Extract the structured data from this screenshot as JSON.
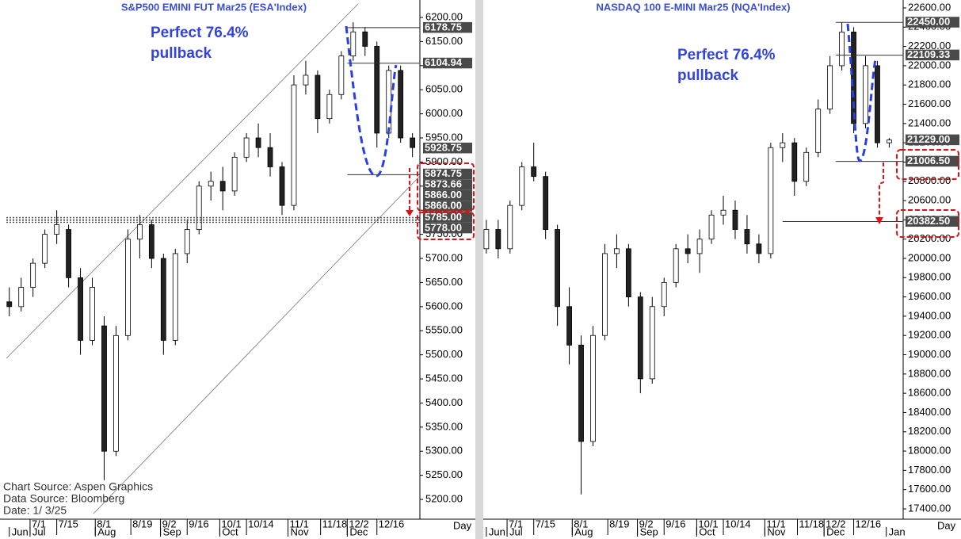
{
  "chart_data": [
    {
      "type": "candlestick",
      "title": "S&P500  EMINI FUT    Mar25  (ESA'Index)",
      "annotations": [
        "Perfect 76.4%",
        "pullback"
      ],
      "notes": [
        "Chart Source:  Aspen Graphics",
        "Data  Source:  Bloomberg",
        "Date:    1/  3/25"
      ],
      "xlabel": "Day",
      "xlim": [
        -8,
        131.5
      ],
      "ylim": [
        5159,
        6223
      ],
      "yticks": [
        {
          "value": 5200,
          "label": "5200.00"
        },
        {
          "value": 5250,
          "label": "5250.00"
        },
        {
          "value": 5300,
          "label": "5300.00"
        },
        {
          "value": 5350,
          "label": "5350.00"
        },
        {
          "value": 5400,
          "label": "5400.00"
        },
        {
          "value": 5450,
          "label": "5450.00"
        },
        {
          "value": 5500,
          "label": "5500.00"
        },
        {
          "value": 5550,
          "label": "5550.00"
        },
        {
          "value": 5600,
          "label": "5600.00"
        },
        {
          "value": 5650,
          "label": "5650.00"
        },
        {
          "value": 5700,
          "label": "5700.00"
        },
        {
          "value": 5750,
          "label": "5750.00"
        },
        {
          "value": 5800,
          "label": "5800.00"
        },
        {
          "value": 5850,
          "label": "5850.00"
        },
        {
          "value": 5900,
          "label": "5900.00"
        },
        {
          "value": 5950,
          "label": "5950.00"
        },
        {
          "value": 6000,
          "label": "6000.00"
        },
        {
          "value": 6050,
          "label": "6050.00"
        },
        {
          "value": 6100,
          "label": "6100.00"
        },
        {
          "value": 6150,
          "label": "6150.00"
        },
        {
          "value": 6200,
          "label": "6200.00"
        }
      ],
      "xticks": [
        {
          "value": 0,
          "label": "7/1"
        },
        {
          "value": 9,
          "label": "7/15"
        },
        {
          "value": 22,
          "label": "8/1"
        },
        {
          "value": 34,
          "label": "8/19"
        },
        {
          "value": 44,
          "label": "9/2"
        },
        {
          "value": 53,
          "label": "9/16"
        },
        {
          "value": 64,
          "label": "10/1"
        },
        {
          "value": 73,
          "label": "10/14"
        },
        {
          "value": 87,
          "label": "11/1"
        },
        {
          "value": 98,
          "label": "11/18"
        },
        {
          "value": 107,
          "label": "12/2"
        },
        {
          "value": 117,
          "label": "12/16"
        }
      ],
      "month_ticks": [
        {
          "value": -7,
          "label": "Jun"
        },
        {
          "value": 0,
          "label": "Jul"
        },
        {
          "value": 22,
          "label": "Aug"
        },
        {
          "value": 44,
          "label": "Sep"
        },
        {
          "value": 64,
          "label": "Oct"
        },
        {
          "value": 87,
          "label": "Nov"
        },
        {
          "value": 107,
          "label": "Dec"
        }
      ],
      "x": [
        -7,
        -3,
        1,
        5,
        9,
        13,
        17,
        21,
        25,
        29,
        33,
        37,
        41,
        45,
        49,
        53,
        57,
        61,
        65,
        69,
        73,
        77,
        81,
        85,
        89,
        93,
        97,
        101,
        105,
        109,
        113,
        117,
        121,
        125,
        129
      ],
      "open": [
        5610,
        5600,
        5640,
        5690,
        5750,
        5760,
        5660,
        5530,
        5560,
        5300,
        5540,
        5740,
        5770,
        5700,
        5530,
        5710,
        5760,
        5850,
        5860,
        5840,
        5910,
        5950,
        5930,
        5890,
        5810,
        6060,
        6080,
        5990,
        6040,
        6120,
        6170,
        6140,
        5960,
        6090,
        5950
      ],
      "high": [
        5640,
        5660,
        5700,
        5760,
        5800,
        5770,
        5680,
        5660,
        5580,
        5560,
        5760,
        5790,
        5780,
        5710,
        5720,
        5780,
        5860,
        5880,
        5890,
        5920,
        5960,
        5980,
        5960,
        5900,
        6080,
        6110,
        6090,
        6050,
        6130,
        6190,
        6180,
        6150,
        6100,
        6100,
        5960
      ],
      "low": [
        5580,
        5590,
        5620,
        5680,
        5730,
        5640,
        5500,
        5520,
        5240,
        5290,
        5530,
        5700,
        5680,
        5500,
        5520,
        5690,
        5750,
        5820,
        5800,
        5830,
        5900,
        5910,
        5870,
        5790,
        5800,
        6040,
        5960,
        5980,
        6030,
        6110,
        6120,
        5930,
        5950,
        5940,
        5910
      ],
      "close": [
        5600,
        5640,
        5690,
        5750,
        5770,
        5660,
        5530,
        5640,
        5300,
        5540,
        5740,
        5770,
        5700,
        5530,
        5710,
        5760,
        5850,
        5860,
        5840,
        5910,
        5950,
        5930,
        5890,
        5810,
        6060,
        6080,
        5990,
        6040,
        6120,
        6170,
        6140,
        5960,
        6090,
        5950,
        5930
      ],
      "levels": [
        {
          "value": 6178.75,
          "x_start": 107
        },
        {
          "value": 6104.94,
          "x_start": 107
        },
        {
          "value": 5928.75
        },
        {
          "value": 5874.75
        },
        {
          "value": 5873.66,
          "x_start": 107
        },
        {
          "value": 5866,
          "label": "5866.00"
        },
        {
          "value": 5866,
          "label": "5866.00"
        },
        {
          "value": 5785,
          "label": "5785.00",
          "x_start": -8,
          "style": "dotted"
        },
        {
          "value": 5778,
          "label": "5778.00",
          "x_start": -8,
          "style": "dotted"
        }
      ]
    },
    {
      "type": "candlestick",
      "title": "NASDAQ  100  E-MINI  Mar25  (NQA'Index)",
      "annotations": [
        "Perfect 76.4%",
        "pullback"
      ],
      "xlabel": "Day",
      "xlim": [
        -7.5,
        133.7
      ],
      "ylim": [
        17293,
        22641
      ],
      "yticks": [
        {
          "value": 17400,
          "label": "17400.00"
        },
        {
          "value": 17600,
          "label": "17600.00"
        },
        {
          "value": 17800,
          "label": "17800.00"
        },
        {
          "value": 18000,
          "label": "18000.00"
        },
        {
          "value": 18200,
          "label": "18200.00"
        },
        {
          "value": 18400,
          "label": "18400.00"
        },
        {
          "value": 18600,
          "label": "18600.00"
        },
        {
          "value": 18800,
          "label": "18800.00"
        },
        {
          "value": 19000,
          "label": "19000.00"
        },
        {
          "value": 19200,
          "label": "19200.00"
        },
        {
          "value": 19400,
          "label": "19400.00"
        },
        {
          "value": 19600,
          "label": "19600.00"
        },
        {
          "value": 19800,
          "label": "19800.00"
        },
        {
          "value": 20000,
          "label": "20000.00"
        },
        {
          "value": 20200,
          "label": "20200.00"
        },
        {
          "value": 20400,
          "label": "20400.00"
        },
        {
          "value": 20600,
          "label": "20600.00"
        },
        {
          "value": 20800,
          "label": "20800.00"
        },
        {
          "value": 21000,
          "label": "21000.00"
        },
        {
          "value": 21200,
          "label": "21200.00"
        },
        {
          "value": 21400,
          "label": "21400.00"
        },
        {
          "value": 21600,
          "label": "21600.00"
        },
        {
          "value": 21800,
          "label": "21800.00"
        },
        {
          "value": 22000,
          "label": "22000.00"
        },
        {
          "value": 22200,
          "label": "22200.00"
        },
        {
          "value": 22400,
          "label": "22400.00"
        },
        {
          "value": 22600,
          "label": "22600.00"
        }
      ],
      "xticks": [
        {
          "value": 0,
          "label": "7/1"
        },
        {
          "value": 9,
          "label": "7/15"
        },
        {
          "value": 22,
          "label": "8/1"
        },
        {
          "value": 34,
          "label": "8/19"
        },
        {
          "value": 44,
          "label": "9/2"
        },
        {
          "value": 53,
          "label": "9/16"
        },
        {
          "value": 64,
          "label": "10/1"
        },
        {
          "value": 73,
          "label": "10/14"
        },
        {
          "value": 87,
          "label": "11/1"
        },
        {
          "value": 98,
          "label": "11/18"
        },
        {
          "value": 107,
          "label": "12/2"
        },
        {
          "value": 117,
          "label": "12/16"
        }
      ],
      "month_ticks": [
        {
          "value": -7,
          "label": "Jun"
        },
        {
          "value": 0,
          "label": "Jul"
        },
        {
          "value": 22,
          "label": "Aug"
        },
        {
          "value": 44,
          "label": "Sep"
        },
        {
          "value": 64,
          "label": "Oct"
        },
        {
          "value": 87,
          "label": "Nov"
        },
        {
          "value": 107,
          "label": "Dec"
        },
        {
          "value": 128,
          "label": "Jan"
        }
      ],
      "x": [
        -7,
        -3,
        1,
        5,
        9,
        13,
        17,
        21,
        25,
        29,
        33,
        37,
        41,
        45,
        49,
        53,
        57,
        61,
        65,
        69,
        73,
        77,
        81,
        85,
        89,
        93,
        97,
        101,
        105,
        109,
        113,
        117,
        121,
        125,
        129
      ],
      "open": [
        20100,
        20300,
        20100,
        20550,
        20950,
        20850,
        20300,
        19500,
        19100,
        18100,
        19200,
        20050,
        20100,
        19600,
        18750,
        19500,
        19750,
        20100,
        20050,
        20200,
        20450,
        20500,
        20300,
        20150,
        20050,
        21150,
        21200,
        20800,
        21100,
        21550,
        22000,
        22350,
        21400,
        22000,
        21200
      ],
      "high": [
        20400,
        20400,
        20600,
        21000,
        21200,
        20900,
        20350,
        19700,
        19200,
        19300,
        20150,
        20250,
        20150,
        19650,
        19600,
        19800,
        20150,
        20250,
        20300,
        20500,
        20650,
        20600,
        20450,
        20250,
        21200,
        21300,
        21250,
        21150,
        21650,
        22100,
        22450,
        22400,
        22100,
        22050,
        21250
      ],
      "low": [
        20050,
        20000,
        20050,
        20500,
        20800,
        20200,
        19300,
        18900,
        17550,
        18050,
        19150,
        19900,
        19500,
        18600,
        18700,
        19400,
        19700,
        19950,
        19850,
        20150,
        20350,
        20200,
        20050,
        19950,
        20000,
        21000,
        20650,
        20750,
        21050,
        21500,
        21950,
        21300,
        21350,
        21150,
        21150
      ],
      "close": [
        20300,
        20100,
        20550,
        20950,
        20850,
        20300,
        19500,
        19100,
        18100,
        19200,
        20050,
        20100,
        19600,
        18750,
        19500,
        19750,
        20100,
        20050,
        20200,
        20450,
        20500,
        20300,
        20150,
        20050,
        21150,
        21200,
        20800,
        21100,
        21550,
        22000,
        22350,
        21400,
        22000,
        21200,
        21229
      ],
      "levels": [
        {
          "value": 22450,
          "label": "22450.00",
          "x_start": 111
        },
        {
          "value": 22109.33,
          "x_start": 111
        },
        {
          "value": 21229,
          "label": "21229.00"
        },
        {
          "value": 21006.5,
          "label": "21006.50",
          "x_start": 111
        },
        {
          "value": 20382.5,
          "label": "20382.50",
          "x_start": 93
        }
      ]
    }
  ]
}
